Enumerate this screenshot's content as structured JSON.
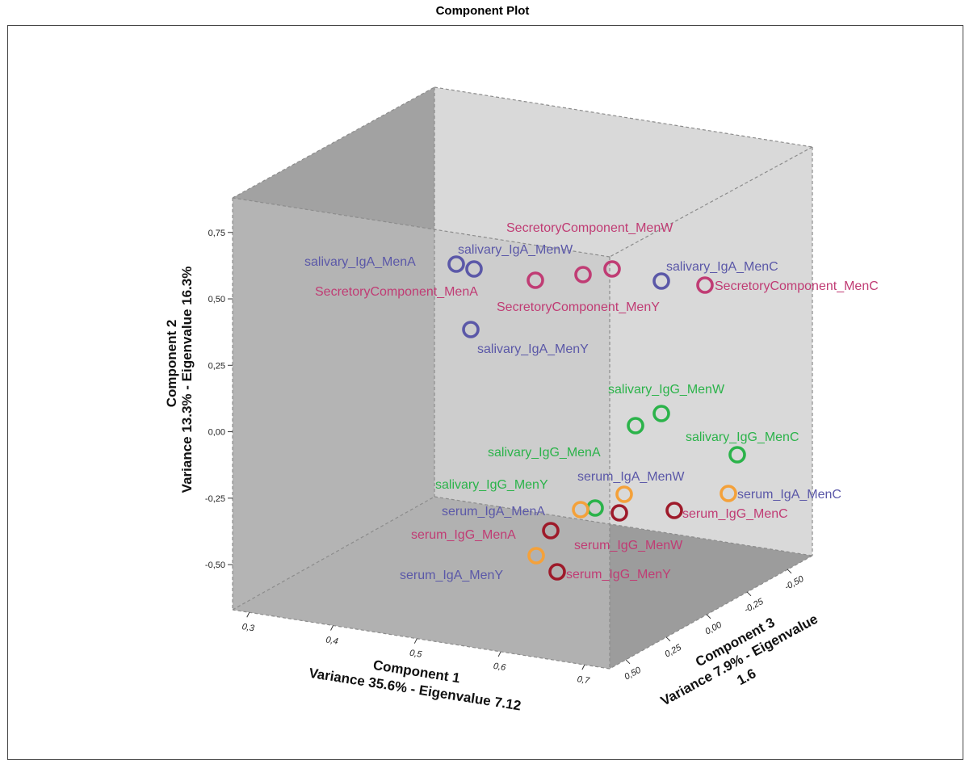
{
  "chart_data": {
    "type": "scatter",
    "title": "Component Plot",
    "axes": {
      "x": {
        "label": "Component 1",
        "sublabel": "Variance 35.6% - Eigenvalue 7.12",
        "ticks": [
          "0,3",
          "0,4",
          "0,5",
          "0,6",
          "0,7"
        ],
        "range": [
          0.28,
          0.73
        ]
      },
      "y": {
        "label": "Component 2",
        "sublabel": "Variance 13.3% - Eigenvalue 16.3%",
        "ticks": [
          "-0,50",
          "-0,25",
          "0,00",
          "0,25",
          "0,50",
          "0,75"
        ],
        "range": [
          -0.67,
          0.88
        ]
      },
      "z": {
        "label": "Component 3",
        "sublabel": "Variance 7.9% - Eigenvalue",
        "sublabel2": "1.6",
        "ticks": [
          "0,50",
          "0,25",
          "0,00",
          "-0,25",
          "-0,50"
        ],
        "range": [
          -0.65,
          0.6
        ]
      }
    },
    "colors": {
      "blue": "#5b58a8",
      "magenta": "#c03c74",
      "green": "#2bb34a",
      "orange": "#f4a13a",
      "darkred": "#9e1a2a"
    },
    "points": [
      {
        "label": "salivary_IgA_MenA",
        "x": 0.41,
        "y": 0.6,
        "z": -0.2,
        "marker": "blue",
        "text": "blue"
      },
      {
        "label": "salivary_IgA_MenW",
        "x": 0.44,
        "y": 0.6,
        "z": -0.28,
        "marker": "blue",
        "text": "blue"
      },
      {
        "label": "salivary_IgA_MenC",
        "x": 0.6,
        "y": 0.66,
        "z": -0.38,
        "marker": "blue",
        "text": "blue"
      },
      {
        "label": "salivary_IgA_MenY",
        "x": 0.44,
        "y": 0.36,
        "z": -0.1,
        "marker": "blue",
        "text": "blue"
      },
      {
        "label": "SecretoryComponent_MenA",
        "x": 0.47,
        "y": 0.58,
        "z": -0.22,
        "marker": "magenta",
        "text": "magenta"
      },
      {
        "label": "SecretoryComponent_MenW",
        "x": 0.5,
        "y": 0.63,
        "z": -0.3,
        "marker": "magenta",
        "text": "magenta"
      },
      {
        "label": "SecretoryComponent_MenY",
        "x": 0.49,
        "y": 0.6,
        "z": -0.25,
        "marker": "magenta",
        "text": "magenta"
      },
      {
        "label": "SecretoryComponent_MenC",
        "x": 0.64,
        "y": 0.65,
        "z": -0.35,
        "marker": "magenta",
        "text": "magenta"
      },
      {
        "label": "salivary_IgG_MenW",
        "x": 0.62,
        "y": 0.05,
        "z": -0.05,
        "marker": "green",
        "text": "green"
      },
      {
        "label": "salivary_IgG_MenA",
        "x": 0.6,
        "y": -0.03,
        "z": 0.02,
        "marker": "green",
        "text": "green"
      },
      {
        "label": "salivary_IgG_MenC",
        "x": 0.7,
        "y": -0.1,
        "z": -0.1,
        "marker": "green",
        "text": "green"
      },
      {
        "label": "salivary_IgG_MenY",
        "x": 0.58,
        "y": -0.33,
        "z": 0.15,
        "marker": "green",
        "text": "green"
      },
      {
        "label": "serum_IgA_MenW",
        "x": 0.6,
        "y": -0.27,
        "z": 0.05,
        "marker": "orange",
        "text": "blue"
      },
      {
        "label": "serum_IgA_MenA",
        "x": 0.57,
        "y": -0.33,
        "z": 0.18,
        "marker": "orange",
        "text": "blue"
      },
      {
        "label": "serum_IgA_MenC",
        "x": 0.7,
        "y": -0.22,
        "z": -0.12,
        "marker": "orange",
        "text": "blue"
      },
      {
        "label": "serum_IgA_MenY",
        "x": 0.55,
        "y": -0.48,
        "z": 0.25,
        "marker": "orange",
        "text": "blue"
      },
      {
        "label": "serum_IgG_MenA",
        "x": 0.57,
        "y": -0.4,
        "z": 0.2,
        "marker": "darkred",
        "text": "magenta"
      },
      {
        "label": "serum_IgG_MenW",
        "x": 0.61,
        "y": -0.35,
        "z": 0.1,
        "marker": "darkred",
        "text": "magenta"
      },
      {
        "label": "serum_IgG_MenC",
        "x": 0.65,
        "y": -0.33,
        "z": 0.0,
        "marker": "darkred",
        "text": "magenta"
      },
      {
        "label": "serum_IgG_MenY",
        "x": 0.57,
        "y": -0.55,
        "z": 0.25,
        "marker": "darkred",
        "text": "magenta"
      }
    ]
  }
}
